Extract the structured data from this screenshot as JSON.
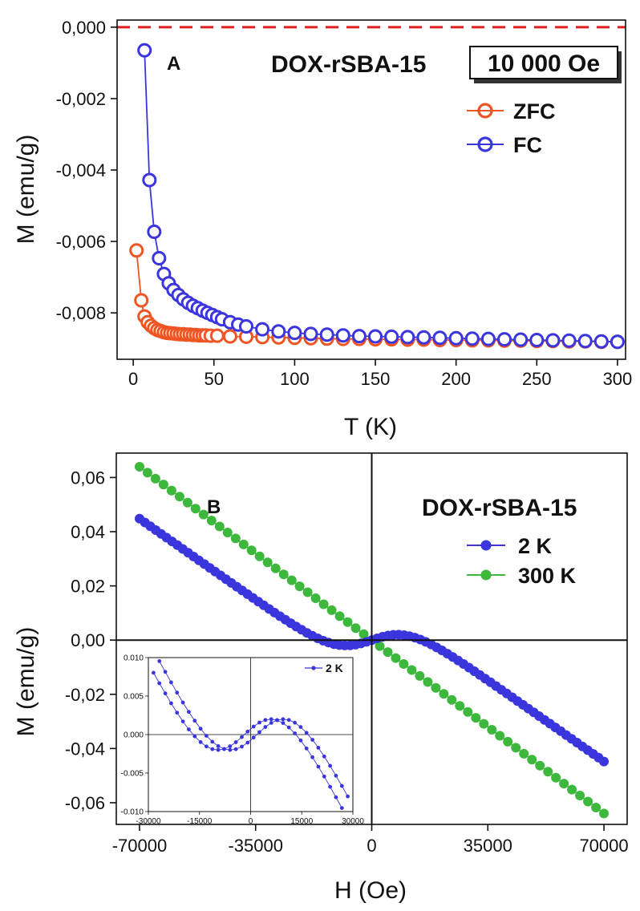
{
  "colors": {
    "zfc": "#ee5522",
    "fc": "#3a35dd",
    "k2": "#3a35dd",
    "k300": "#3db83d",
    "zero_line_dashed": "#e02020"
  },
  "chart_data": [
    {
      "panel": "A",
      "type": "line",
      "title": "DOX-rSBA-15",
      "field_label": "10 000 Oe",
      "xlabel": "T (K)",
      "ylabel": "M (emu/g)",
      "xlim": [
        -10,
        305
      ],
      "ylim": [
        -0.0093,
        0.0002
      ],
      "xticks": [
        0,
        50,
        100,
        150,
        200,
        250,
        300
      ],
      "xtick_labels": [
        "0",
        "50",
        "100",
        "150",
        "200",
        "250",
        "300"
      ],
      "yticks": [
        0,
        -0.002,
        -0.004,
        -0.006,
        -0.008
      ],
      "ytick_labels": [
        "0,000",
        "-0,002",
        "-0,004",
        "-0,006",
        "-0,008"
      ],
      "reference_line": {
        "y": 0,
        "style": "dashed"
      },
      "legend": [
        "ZFC",
        "FC"
      ],
      "series": [
        {
          "name": "ZFC",
          "x": [
            2,
            5,
            7,
            9,
            11,
            13,
            15,
            17,
            19,
            21,
            23,
            25,
            27,
            29,
            31,
            33,
            35,
            37,
            39,
            41,
            43,
            45,
            48,
            52,
            60,
            70,
            80,
            90,
            100,
            110,
            120,
            130,
            140,
            150,
            160,
            170,
            180,
            190,
            200,
            210,
            220,
            230,
            240,
            250,
            260,
            270,
            280,
            290,
            300
          ],
          "values": [
            -0.00625,
            -0.00765,
            -0.0081,
            -0.00826,
            -0.00836,
            -0.00843,
            -0.00848,
            -0.00851,
            -0.00854,
            -0.00856,
            -0.00857,
            -0.00858,
            -0.00859,
            -0.0086,
            -0.0086,
            -0.00861,
            -0.00861,
            -0.00862,
            -0.00862,
            -0.00863,
            -0.00863,
            -0.00863,
            -0.00864,
            -0.00864,
            -0.00866,
            -0.00867,
            -0.00868,
            -0.00869,
            -0.0087,
            -0.00871,
            -0.00872,
            -0.00873,
            -0.00873,
            -0.00874,
            -0.00874,
            -0.00875,
            -0.00875,
            -0.00876,
            -0.00876,
            -0.00877,
            -0.00877,
            -0.00878,
            -0.00878,
            -0.00879,
            -0.00879,
            -0.0088,
            -0.0088,
            -0.00881,
            -0.00881
          ]
        },
        {
          "name": "FC",
          "x": [
            7,
            10,
            13,
            16,
            19,
            22,
            25,
            28,
            31,
            34,
            37,
            40,
            43,
            46,
            49,
            52,
            55,
            60,
            65,
            70,
            80,
            90,
            100,
            110,
            120,
            130,
            140,
            150,
            160,
            170,
            180,
            190,
            200,
            210,
            220,
            230,
            240,
            250,
            260,
            270,
            280,
            290,
            300
          ],
          "values": [
            -0.00065,
            -0.00428,
            -0.00573,
            -0.00647,
            -0.00691,
            -0.00717,
            -0.00736,
            -0.0075,
            -0.00762,
            -0.00772,
            -0.0078,
            -0.00787,
            -0.00794,
            -0.008,
            -0.00806,
            -0.00812,
            -0.00818,
            -0.00826,
            -0.00833,
            -0.00838,
            -0.00846,
            -0.00852,
            -0.00856,
            -0.00859,
            -0.00861,
            -0.00863,
            -0.00865,
            -0.00866,
            -0.00867,
            -0.00868,
            -0.00869,
            -0.0087,
            -0.00871,
            -0.00872,
            -0.00873,
            -0.00874,
            -0.00875,
            -0.00876,
            -0.00877,
            -0.00878,
            -0.00879,
            -0.0088,
            -0.00881
          ]
        }
      ]
    },
    {
      "panel": "B",
      "type": "scatter",
      "title": "DOX-rSBA-15",
      "xlabel": "H (Oe)",
      "ylabel": "M (emu/g)",
      "xlim": [
        -77000,
        77000
      ],
      "ylim": [
        -0.068,
        0.069
      ],
      "xticks": [
        -70000,
        -35000,
        0,
        35000,
        70000
      ],
      "xtick_labels": [
        "-70000",
        "-35000",
        "0",
        "35000",
        "70000"
      ],
      "yticks": [
        0.06,
        0.04,
        0.02,
        0,
        -0.02,
        -0.04,
        -0.06
      ],
      "ytick_labels": [
        "0,06",
        "0,04",
        "0,02",
        "0,00",
        "-0,02",
        "-0,04",
        "-0,06"
      ],
      "legend": [
        "2 K",
        "300 K"
      ],
      "series": [
        {
          "name": "300 K",
          "model": "linear",
          "slope": -9.14e-07,
          "x_range": [
            -70000,
            70000
          ],
          "point_count": 59
        },
        {
          "name": "2 K",
          "model": "diamagnetic_plus_superparamagnetic",
          "slope": -8.57e-07,
          "saturation": 0.0152,
          "field_scale": 12000,
          "x_range": [
            -70000,
            70000
          ],
          "point_count": 87
        }
      ],
      "inset": {
        "xlim": [
          -30000,
          30000
        ],
        "ylim": [
          -0.01,
          0.01
        ],
        "xticks": [
          -30000,
          -15000,
          0,
          15000,
          30000
        ],
        "xtick_labels": [
          "-30000",
          "-15000",
          "0",
          "15000",
          "30000"
        ],
        "yticks": [
          0.01,
          0.005,
          0,
          -0.005,
          -0.01
        ],
        "ytick_labels": [
          "0.010",
          "0.005",
          "0.000",
          "-0.005",
          "-0.010"
        ],
        "legend": [
          "2 K"
        ],
        "hysteresis_offset": 1800,
        "point_count": 34
      }
    }
  ]
}
